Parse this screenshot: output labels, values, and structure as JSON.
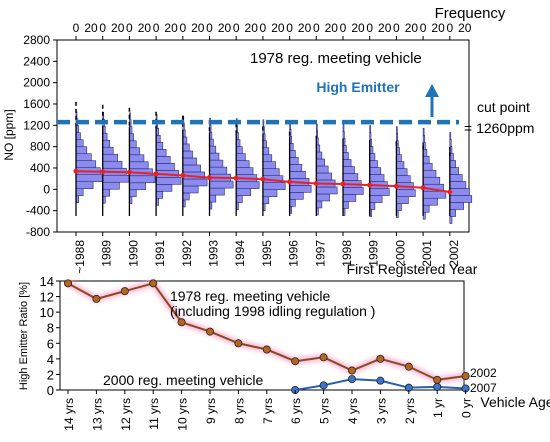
{
  "colors": {
    "histogram_fill": "#8c8cee",
    "histogram_stroke": "#2a2a7a",
    "median_line": "#e8202a",
    "cutpoint_line": "#1f73b7",
    "series_1978": "#8b4a1e",
    "series_1978_points": "#b5651d",
    "series_2000": "#2a5db0",
    "series_2000_points": "#3a74d0",
    "glow": "#f4b6d8"
  },
  "chart_data": [
    {
      "type": "histogram",
      "title": "1978 reg. meeting vehicle",
      "xlabel": "First Registered Year",
      "ylabel": "NO [ppm]",
      "top_axis_label": "Frequency",
      "frequency_tick_labels": [
        "0",
        "20"
      ],
      "ylim": [
        -800,
        2800
      ],
      "yticks": [
        -800,
        -400,
        0,
        400,
        800,
        1200,
        1600,
        2000,
        2400,
        2800
      ],
      "categories": [
        "~1988",
        "1989",
        "1990",
        "1991",
        "1992",
        "1993",
        "1994",
        "1995",
        "1996",
        "1997",
        "1998",
        "1999",
        "2000",
        "2001",
        "2002"
      ],
      "median_values": [
        340,
        330,
        320,
        290,
        260,
        220,
        210,
        190,
        140,
        110,
        100,
        80,
        60,
        30,
        -50
      ],
      "cutpoint": {
        "value": 1260,
        "label_1": "cut point",
        "label_2": "= 1260ppm",
        "high_emitter_label": "High Emitter"
      }
    },
    {
      "type": "line",
      "xlabel": "Vehicle Age",
      "ylabel": "High Emitter Ratio [%]",
      "ylim": [
        0,
        14
      ],
      "yticks": [
        0,
        2,
        4,
        6,
        8,
        10,
        12,
        14
      ],
      "categories": [
        "14 yrs",
        "13 yrs",
        "12 yrs",
        "11 yrs",
        "10 yrs",
        "9 yrs",
        "8 yrs",
        "7 yrs",
        "6 yrs",
        "5 yrs",
        "4 yrs",
        "3 yrs",
        "2 yrs",
        "1 yr",
        "0 yr"
      ],
      "series": [
        {
          "name_line1": "1978 reg. meeting vehicle",
          "name_line2": "(including 1998 idling regulation )",
          "end_label": "2002",
          "values": [
            13.7,
            11.7,
            12.7,
            13.7,
            8.7,
            7.5,
            6.0,
            5.2,
            3.7,
            4.2,
            2.5,
            4.0,
            3.0,
            1.3,
            1.8
          ]
        },
        {
          "name": "2000 reg. meeting vehicle",
          "end_label": "2007",
          "values": [
            null,
            null,
            null,
            null,
            null,
            null,
            null,
            null,
            0.0,
            0.6,
            1.4,
            1.2,
            0.3,
            0.4,
            0.2
          ]
        }
      ]
    }
  ]
}
